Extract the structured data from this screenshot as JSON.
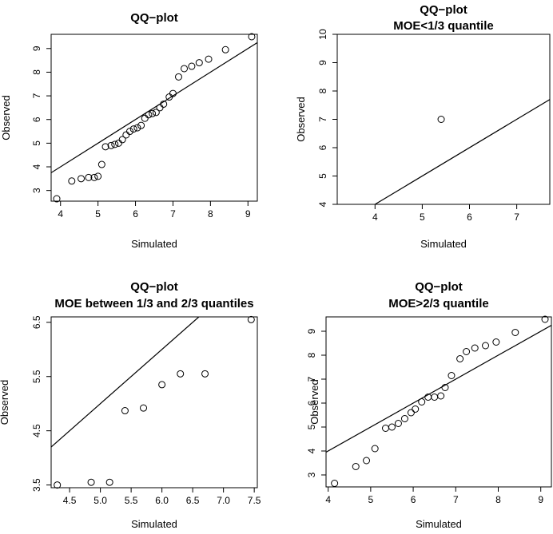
{
  "chart_data": [
    {
      "type": "scatter",
      "id": "panel-1",
      "title": [
        "QQ−plot"
      ],
      "xlabel": "Simulated",
      "ylabel": "Observed",
      "xlim": [
        3.75,
        9.25
      ],
      "ylim": [
        2.55,
        9.6
      ],
      "xticks": [
        4,
        5,
        6,
        7,
        8,
        9
      ],
      "yticks": [
        3,
        4,
        5,
        6,
        7,
        8,
        9
      ],
      "points": [
        [
          3.9,
          2.65
        ],
        [
          4.3,
          3.4
        ],
        [
          4.55,
          3.5
        ],
        [
          4.75,
          3.55
        ],
        [
          4.9,
          3.55
        ],
        [
          5.0,
          3.6
        ],
        [
          5.1,
          4.1
        ],
        [
          5.2,
          4.85
        ],
        [
          5.35,
          4.9
        ],
        [
          5.45,
          4.95
        ],
        [
          5.55,
          5.0
        ],
        [
          5.65,
          5.15
        ],
        [
          5.75,
          5.35
        ],
        [
          5.85,
          5.5
        ],
        [
          5.95,
          5.6
        ],
        [
          6.05,
          5.65
        ],
        [
          6.15,
          5.75
        ],
        [
          6.25,
          6.05
        ],
        [
          6.35,
          6.2
        ],
        [
          6.45,
          6.25
        ],
        [
          6.55,
          6.3
        ],
        [
          6.65,
          6.5
        ],
        [
          6.75,
          6.65
        ],
        [
          6.9,
          6.95
        ],
        [
          7.0,
          7.1
        ],
        [
          7.15,
          7.8
        ],
        [
          7.3,
          8.15
        ],
        [
          7.5,
          8.25
        ],
        [
          7.7,
          8.4
        ],
        [
          7.95,
          8.55
        ],
        [
          8.4,
          8.95
        ],
        [
          9.1,
          9.5
        ]
      ],
      "line": [
        [
          3.75,
          3.75
        ],
        [
          9.25,
          9.25
        ]
      ]
    },
    {
      "type": "scatter",
      "id": "panel-2",
      "title": [
        "QQ−plot",
        "MOE<1/3 quantile"
      ],
      "xlabel": "Simulated",
      "ylabel": "Observed",
      "xlim": [
        3.2,
        7.7
      ],
      "ylim": [
        4.0,
        10.0
      ],
      "xticks": [
        4,
        5,
        6,
        7
      ],
      "yticks": [
        4,
        5,
        6,
        7,
        8,
        9,
        10
      ],
      "points": [
        [
          5.4,
          7.0
        ]
      ],
      "line": [
        [
          4.0,
          4.0
        ],
        [
          7.7,
          7.7
        ]
      ]
    },
    {
      "type": "scatter",
      "id": "panel-3",
      "title": [
        "QQ−plot",
        "MOE between 1/3 and 2/3 quantiles"
      ],
      "xlabel": "Simulated",
      "ylabel": "Observed",
      "xlim": [
        4.2,
        7.55
      ],
      "ylim": [
        3.45,
        6.6
      ],
      "xticks": [
        4.5,
        5.0,
        5.5,
        6.0,
        6.5,
        7.0,
        7.5
      ],
      "xtick_labels": [
        "4.5",
        "5.0",
        "5.5",
        "6.0",
        "6.5",
        "7.0",
        "7.5"
      ],
      "yticks": [
        3.5,
        4.5,
        5.5,
        6.5
      ],
      "ytick_labels": [
        "3.5",
        "4.5",
        "5.5",
        "6.5"
      ],
      "points": [
        [
          4.3,
          3.5
        ],
        [
          4.85,
          3.55
        ],
        [
          5.15,
          3.55
        ],
        [
          5.4,
          4.87
        ],
        [
          5.7,
          4.92
        ],
        [
          6.0,
          5.35
        ],
        [
          6.3,
          5.55
        ],
        [
          6.7,
          5.55
        ],
        [
          7.45,
          6.55
        ]
      ],
      "line": [
        [
          4.2,
          4.2
        ],
        [
          6.6,
          6.6
        ]
      ]
    },
    {
      "type": "scatter",
      "id": "panel-4",
      "title": [
        "QQ−plot",
        "MOE>2/3 quantile"
      ],
      "xlabel": "Simulated",
      "ylabel": "Observed",
      "xlim": [
        3.95,
        9.25
      ],
      "ylim": [
        2.5,
        9.6
      ],
      "xticks": [
        4,
        5,
        6,
        7,
        8,
        9
      ],
      "yticks": [
        3,
        4,
        5,
        6,
        7,
        8,
        9
      ],
      "points": [
        [
          4.15,
          2.65
        ],
        [
          4.65,
          3.35
        ],
        [
          4.9,
          3.6
        ],
        [
          5.1,
          4.1
        ],
        [
          5.35,
          4.95
        ],
        [
          5.5,
          5.0
        ],
        [
          5.65,
          5.15
        ],
        [
          5.8,
          5.35
        ],
        [
          5.95,
          5.6
        ],
        [
          6.05,
          5.75
        ],
        [
          6.2,
          6.05
        ],
        [
          6.35,
          6.25
        ],
        [
          6.5,
          6.25
        ],
        [
          6.65,
          6.3
        ],
        [
          6.75,
          6.65
        ],
        [
          6.9,
          7.15
        ],
        [
          7.1,
          7.85
        ],
        [
          7.25,
          8.15
        ],
        [
          7.45,
          8.3
        ],
        [
          7.7,
          8.4
        ],
        [
          7.95,
          8.55
        ],
        [
          8.4,
          8.95
        ],
        [
          9.1,
          9.5
        ]
      ],
      "line": [
        [
          3.95,
          3.95
        ],
        [
          9.25,
          9.25
        ]
      ]
    }
  ]
}
